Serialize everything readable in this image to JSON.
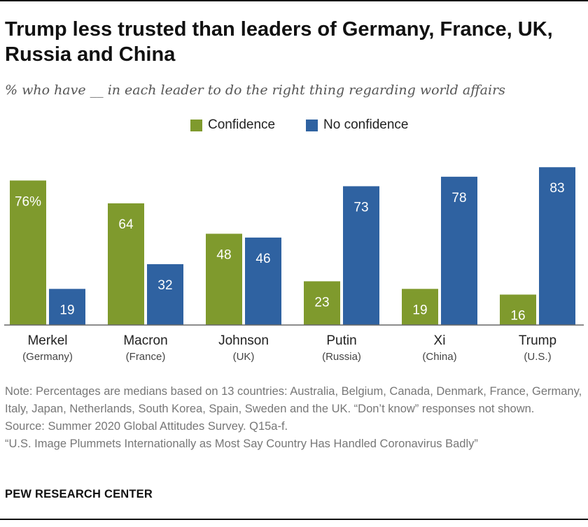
{
  "title": "Trump less trusted than leaders of Germany, France, UK, Russia and China",
  "subtitle": "% who have __ in each leader to do the right thing regarding world affairs",
  "colors": {
    "confidence": "#7f9a2d",
    "no_confidence": "#2f62a1"
  },
  "chart_data": {
    "type": "bar",
    "categories": [
      "Merkel",
      "Macron",
      "Johnson",
      "Putin",
      "Xi",
      "Trump"
    ],
    "category_sublabels": [
      "(Germany)",
      "(France)",
      "(UK)",
      "(Russia)",
      "(China)",
      "(U.S.)"
    ],
    "series": [
      {
        "name": "Confidence",
        "values": [
          76,
          64,
          48,
          23,
          19,
          16
        ],
        "labels": [
          "76%",
          "64",
          "48",
          "23",
          "19",
          "16"
        ]
      },
      {
        "name": "No confidence",
        "values": [
          19,
          32,
          46,
          73,
          78,
          83
        ],
        "labels": [
          "19",
          "32",
          "46",
          "73",
          "78",
          "83"
        ]
      }
    ],
    "ylim": [
      0,
      100
    ],
    "legend_position": "top-center",
    "grid": false
  },
  "notes": {
    "note": "Note: Percentages are medians based on 13 countries: Australia, Belgium, Canada, Denmark, France, Germany, Italy, Japan, Netherlands, South Korea, Spain, Sweden and the UK. “Don’t know” responses not shown.",
    "source": "Source: Summer 2020 Global Attitudes Survey. Q15a-f.",
    "report": "“U.S. Image Plummets Internationally as Most Say Country Has Handled Coronavirus Badly”"
  },
  "organization": "PEW RESEARCH CENTER"
}
